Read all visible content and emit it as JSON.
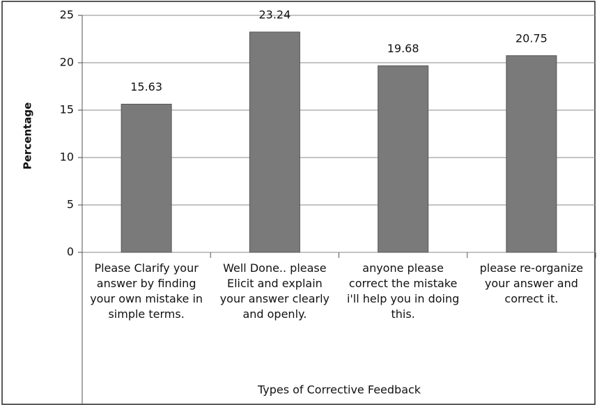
{
  "chart_data": {
    "type": "bar",
    "x_label": "Types of Corrective Feedback",
    "y_label": "Percentage",
    "categories": [
      "Please Clarify your answer by finding your own mistake in simple terms.",
      "Well Done.. please Elicit and explain your answer clearly and openly.",
      "anyone please correct the mistake i'll help you in doing this.",
      "please re-organize your answer and correct it."
    ],
    "values": [
      15.63,
      23.24,
      19.68,
      20.75
    ],
    "color": "#7a7a7a",
    "ylim": [
      0,
      25
    ],
    "yticks": [
      0,
      5,
      10,
      15,
      20,
      25
    ],
    "grid": true
  }
}
